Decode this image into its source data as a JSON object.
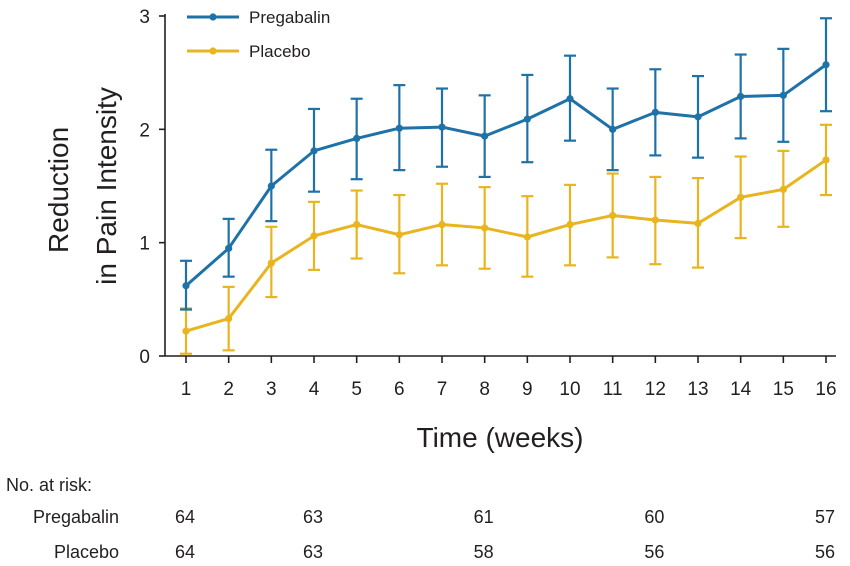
{
  "chart_data": {
    "type": "line",
    "title": "",
    "xlabel": "Time (weeks)",
    "ylabel_lines": [
      "Reduction",
      "in Pain Intensity"
    ],
    "x": [
      1,
      2,
      3,
      4,
      5,
      6,
      7,
      8,
      9,
      10,
      11,
      12,
      13,
      14,
      15,
      16
    ],
    "xlim": [
      1,
      16
    ],
    "ylim": [
      0,
      3
    ],
    "yticks": [
      0,
      1,
      2,
      3
    ],
    "legend_position": "top-left",
    "series": [
      {
        "name": "Pregabalin",
        "color": "#1f72a8",
        "values": [
          0.62,
          0.95,
          1.5,
          1.81,
          1.92,
          2.01,
          2.02,
          1.94,
          2.09,
          2.27,
          2.0,
          2.15,
          2.11,
          2.29,
          2.3,
          2.57
        ],
        "error_lower": [
          0.41,
          0.7,
          1.19,
          1.45,
          1.56,
          1.64,
          1.67,
          1.58,
          1.71,
          1.9,
          1.64,
          1.77,
          1.75,
          1.92,
          1.89,
          2.16
        ],
        "error_upper": [
          0.84,
          1.21,
          1.82,
          2.18,
          2.27,
          2.39,
          2.36,
          2.3,
          2.48,
          2.65,
          2.36,
          2.53,
          2.47,
          2.66,
          2.71,
          2.98
        ]
      },
      {
        "name": "Placebo",
        "color": "#e8b520",
        "values": [
          0.22,
          0.33,
          0.82,
          1.06,
          1.16,
          1.07,
          1.16,
          1.13,
          1.05,
          1.16,
          1.24,
          1.2,
          1.17,
          1.4,
          1.47,
          1.73
        ],
        "error_lower": [
          0.02,
          0.05,
          0.52,
          0.76,
          0.86,
          0.73,
          0.8,
          0.77,
          0.7,
          0.8,
          0.87,
          0.81,
          0.78,
          1.04,
          1.14,
          1.42
        ],
        "error_upper": [
          0.42,
          0.61,
          1.14,
          1.36,
          1.46,
          1.42,
          1.52,
          1.49,
          1.41,
          1.51,
          1.61,
          1.58,
          1.57,
          1.76,
          1.81,
          2.04
        ]
      }
    ]
  },
  "at_risk": {
    "heading": "No. at risk:",
    "weeks": [
      1,
      4,
      8,
      12,
      16
    ],
    "rows": [
      {
        "label": "Pregabalin",
        "counts": [
          "64",
          "63",
          "61",
          "60",
          "57"
        ]
      },
      {
        "label": "Placebo",
        "counts": [
          "64",
          "63",
          "58",
          "56",
          "56"
        ]
      }
    ]
  }
}
